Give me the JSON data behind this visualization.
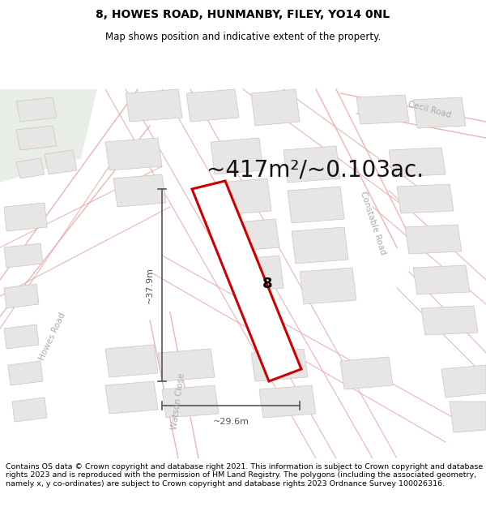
{
  "title": "8, HOWES ROAD, HUNMANBY, FILEY, YO14 0NL",
  "subtitle": "Map shows position and indicative extent of the property.",
  "area_text": "~417m²/~0.103ac.",
  "label_8": "8",
  "dim_vertical": "~37.9m",
  "dim_horizontal": "~29.6m",
  "footer": "Contains OS data © Crown copyright and database right 2021. This information is subject to Crown copyright and database rights 2023 and is reproduced with the permission of HM Land Registry. The polygons (including the associated geometry, namely x, y co-ordinates) are subject to Crown copyright and database rights 2023 Ordnance Survey 100026316.",
  "map_bg": "#f7f5f5",
  "building_fc": "#e8e5e5",
  "building_ec": "#c8c4c4",
  "road_line_color": "#e8a8a8",
  "prop_stroke": "#cc0000",
  "prop_fill": "#ffffff",
  "dim_color": "#555555",
  "road_label_color": "#aaaaaa",
  "area_color": "#111111",
  "title_fontsize": 10,
  "subtitle_fontsize": 8.5,
  "area_fontsize": 20,
  "label_fontsize": 13,
  "dim_fontsize": 8,
  "road_label_fontsize": 7.5,
  "footer_fontsize": 6.8
}
